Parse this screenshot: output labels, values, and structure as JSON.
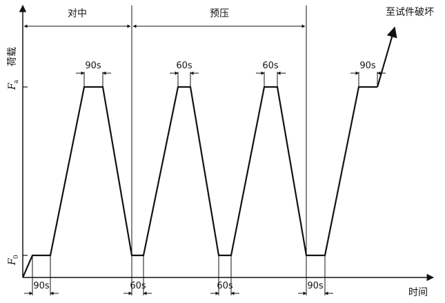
{
  "phases": {
    "centering": "对中",
    "preload": "预压",
    "to_failure": "至试件破坏"
  },
  "axes": {
    "y_title": "荷载",
    "x_title": "时间",
    "y_tick_top": "F",
    "y_tick_top_sub": "a",
    "y_tick_bottom": "F",
    "y_tick_bottom_sub": "0"
  },
  "hold_labels": {
    "top": [
      "90s",
      "60s",
      "60s",
      "90s"
    ],
    "bottom": [
      "90s",
      "60s",
      "60s",
      "90s"
    ]
  },
  "colors": {
    "line": "#111111",
    "background": "#ffffff"
  }
}
